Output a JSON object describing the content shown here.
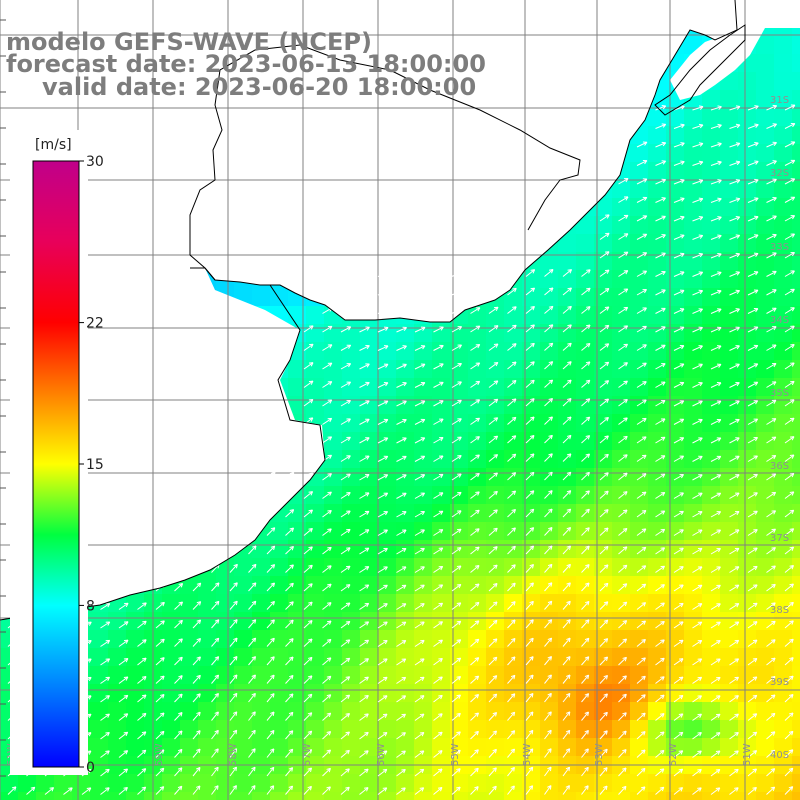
{
  "title": {
    "line1": "modelo GEFS-WAVE (NCEP)",
    "line2": "forecast date: 2023-06-13 18:00:00",
    "line3": "valid date: 2023-06-20 18:00:00"
  },
  "colorbar": {
    "unit": "[m/s]",
    "ticks": [
      "30",
      "22",
      "15",
      "8",
      "0"
    ],
    "tick_values": [
      30,
      22,
      15,
      8,
      0
    ],
    "stops": [
      {
        "v": 0,
        "color": "#0000ff"
      },
      {
        "v": 4,
        "color": "#0080ff"
      },
      {
        "v": 8,
        "color": "#00ffff"
      },
      {
        "v": 11.5,
        "color": "#00ff40"
      },
      {
        "v": 15,
        "color": "#ffff00"
      },
      {
        "v": 18.5,
        "color": "#ff8000"
      },
      {
        "v": 22,
        "color": "#ff0000"
      },
      {
        "v": 26,
        "color": "#e8005a"
      },
      {
        "v": 30,
        "color": "#c0008a"
      }
    ]
  },
  "map": {
    "longitude_labels": [
      "61W",
      "60W",
      "59W",
      "58W",
      "57W",
      "56W",
      "55W",
      "54W",
      "53W",
      "52W",
      "51W"
    ],
    "latitude_labels": [
      "31S",
      "32S",
      "33S",
      "34S",
      "35S",
      "36S",
      "37S",
      "38S",
      "39S",
      "40S"
    ],
    "colors": {
      "land": "#ffffff",
      "grid": "#808080",
      "coast": "#000000",
      "arrow": "#ffffff",
      "label": "#909090"
    },
    "field_description_levels": {
      "coastal_shelf_speed_ms": 8,
      "offshore_speed_ms": 12,
      "southeast_max_speed_ms": 18
    }
  }
}
